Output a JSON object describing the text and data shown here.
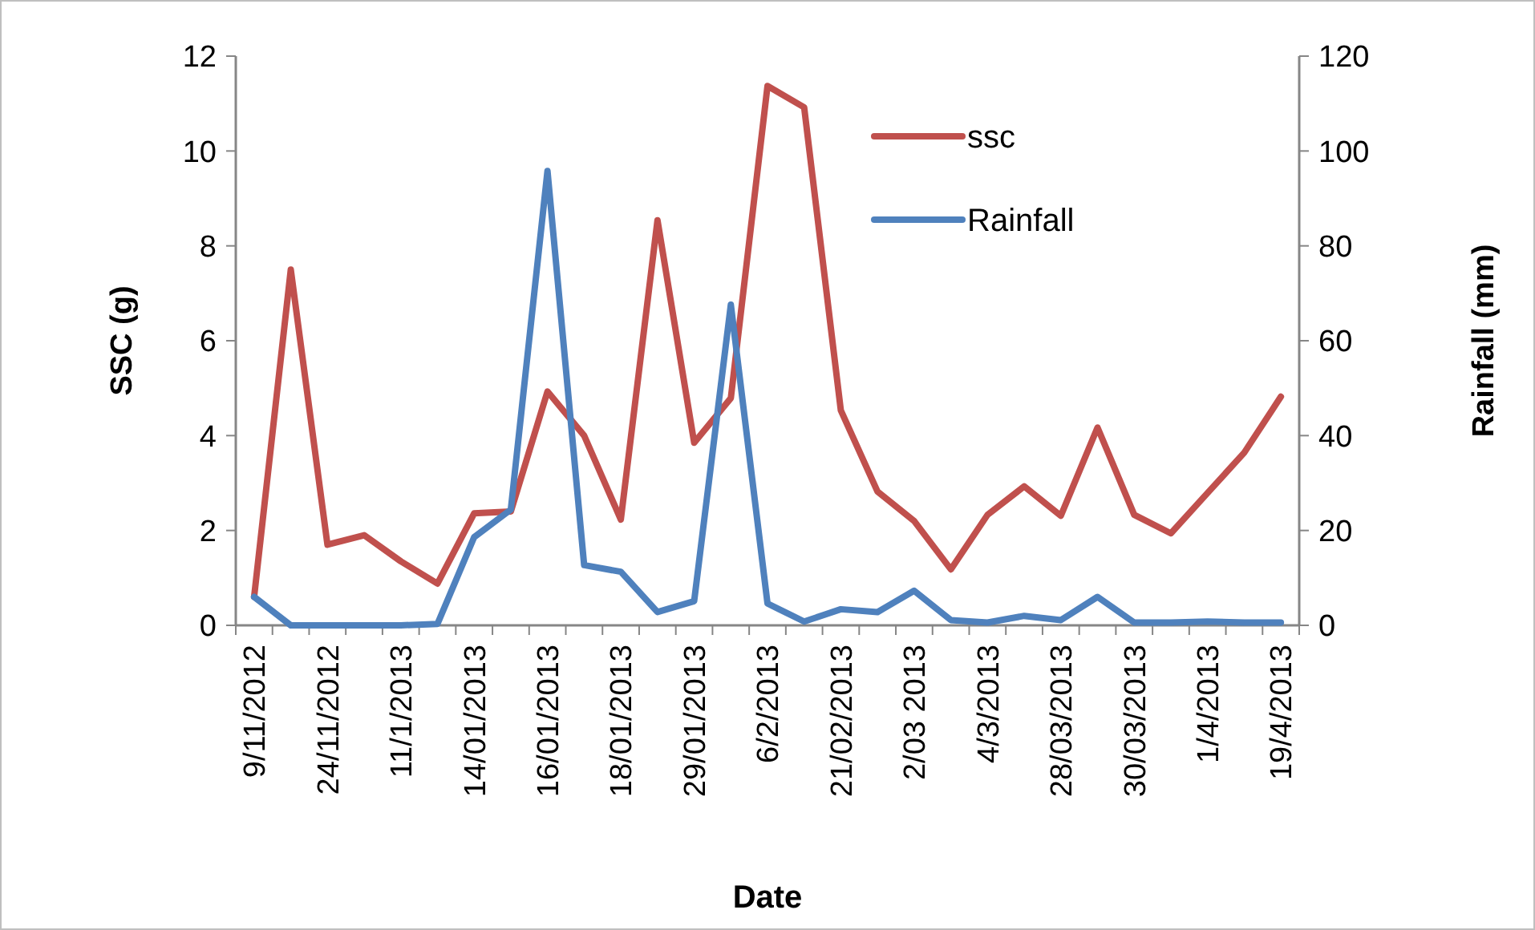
{
  "chart_data": {
    "type": "line",
    "xlabel": "Date",
    "ylabel": "SSC (g)",
    "y2label": "Rainfall (mm)",
    "categories": [
      "9/11/2012",
      null,
      "24/11/2012",
      null,
      "11/1/2013",
      null,
      "14/01/2013",
      null,
      "16/01/2013",
      null,
      "18/01/2013",
      null,
      "29/01/2013",
      null,
      "6/2/2013",
      null,
      "21/02/2013",
      null,
      "2/03 2013",
      null,
      "4/3/2013",
      null,
      "28/03/2013",
      null,
      "30/03/2013",
      null,
      "1/4/2013",
      null,
      "19/4/2013"
    ],
    "series": [
      {
        "name": "ssc",
        "color": "#c0504d",
        "values": [
          0.6,
          7.5,
          1.7,
          1.9,
          1.35,
          0.88,
          2.36,
          2.4,
          4.93,
          4.0,
          2.23,
          8.54,
          3.85,
          4.79,
          11.37,
          10.92,
          4.53,
          2.82,
          2.2,
          1.18,
          2.33,
          2.93,
          2.31,
          4.17,
          2.33,
          1.94,
          2.79,
          3.64,
          4.82
        ]
      },
      {
        "name": "Rainfall",
        "color": "#4f81bd",
        "axis": "y2",
        "values": [
          6,
          0,
          0,
          0,
          0,
          0.3,
          18.6,
          24.4,
          95.8,
          12.7,
          11.3,
          2.8,
          5.1,
          67.6,
          4.6,
          0.8,
          3.4,
          2.8,
          7.3,
          1.1,
          0.6,
          2.0,
          1.1,
          6.0,
          0.6,
          0.6,
          0.8,
          0.6,
          0.6
        ]
      }
    ],
    "ylim": [
      0,
      12
    ],
    "yticks": [
      0,
      2,
      4,
      6,
      8,
      10,
      12
    ],
    "y2lim": [
      0,
      120
    ],
    "y2ticks": [
      0,
      20,
      40,
      60,
      80,
      100,
      120
    ],
    "grid": false,
    "legend": "top right",
    "marker": "none",
    "line_style": "solid"
  }
}
